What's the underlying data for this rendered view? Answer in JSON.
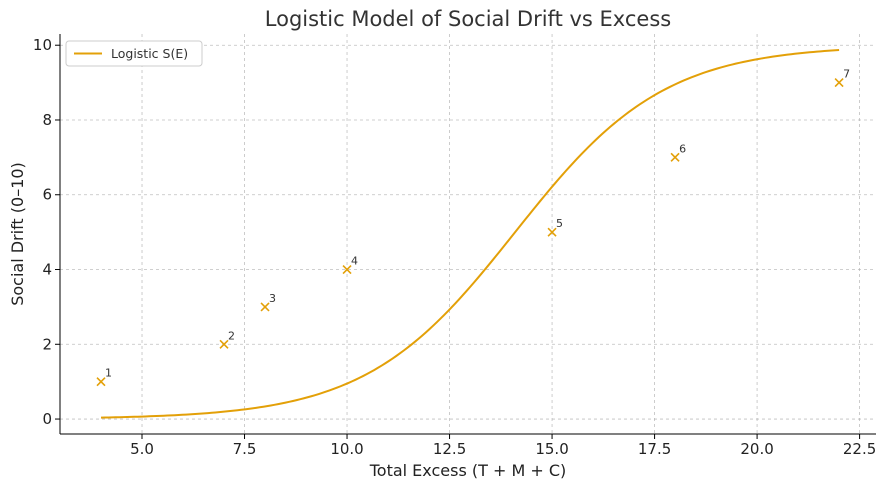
{
  "chart_data": {
    "type": "line",
    "title": "Logistic Model of Social Drift vs Excess",
    "xlabel": "Total Excess (T + M + C)",
    "ylabel": "Social Drift (0–10)",
    "xlim": [
      3.0,
      22.9
    ],
    "ylim": [
      -0.4,
      10.3
    ],
    "xticks": [
      5.0,
      7.5,
      10.0,
      12.5,
      15.0,
      17.5,
      20.0,
      22.5
    ],
    "xtick_labels": [
      "5.0",
      "7.5",
      "10.0",
      "12.5",
      "15.0",
      "17.5",
      "20.0",
      "22.5"
    ],
    "yticks": [
      0,
      2,
      4,
      6,
      8,
      10
    ],
    "ytick_labels": [
      "0",
      "2",
      "4",
      "6",
      "8",
      "10"
    ],
    "grid": true,
    "legend_position": "top-left",
    "color": "#e3a008",
    "series": [
      {
        "name": "Logistic S(E)",
        "kind": "line",
        "model": {
          "L": 10,
          "k": 0.55,
          "x0": 14.1
        },
        "x_range": [
          4,
          22
        ]
      },
      {
        "kind": "scatter",
        "marker": "x",
        "points": [
          {
            "x": 4,
            "y": 1,
            "label": "1"
          },
          {
            "x": 7,
            "y": 2,
            "label": "2"
          },
          {
            "x": 8,
            "y": 3,
            "label": "3"
          },
          {
            "x": 10,
            "y": 4,
            "label": "4"
          },
          {
            "x": 15,
            "y": 5,
            "label": "5"
          },
          {
            "x": 18,
            "y": 7,
            "label": "6"
          },
          {
            "x": 22,
            "y": 9,
            "label": "7"
          }
        ]
      }
    ]
  }
}
